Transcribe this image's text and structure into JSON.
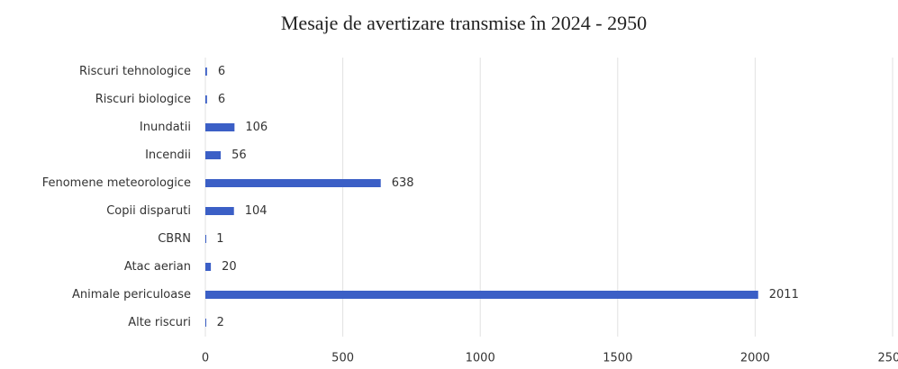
{
  "chart_data": {
    "type": "bar",
    "orientation": "horizontal",
    "title": "Mesaje de avertizare transmise în 2024 - 2950",
    "categories": [
      "Riscuri tehnologice",
      "Riscuri biologice",
      "Inundatii",
      "Incendii",
      "Fenomene meteorologice",
      "Copii disparuti",
      "CBRN",
      "Atac aerian",
      "Animale periculoase",
      "Alte riscuri"
    ],
    "values": [
      6,
      6,
      106,
      56,
      638,
      104,
      1,
      20,
      2011,
      2
    ],
    "color": "#3b5fc6",
    "xlim": [
      0,
      2500
    ],
    "xticks": [
      0,
      500,
      1000,
      1500,
      2000,
      2500
    ],
    "grid": true
  }
}
